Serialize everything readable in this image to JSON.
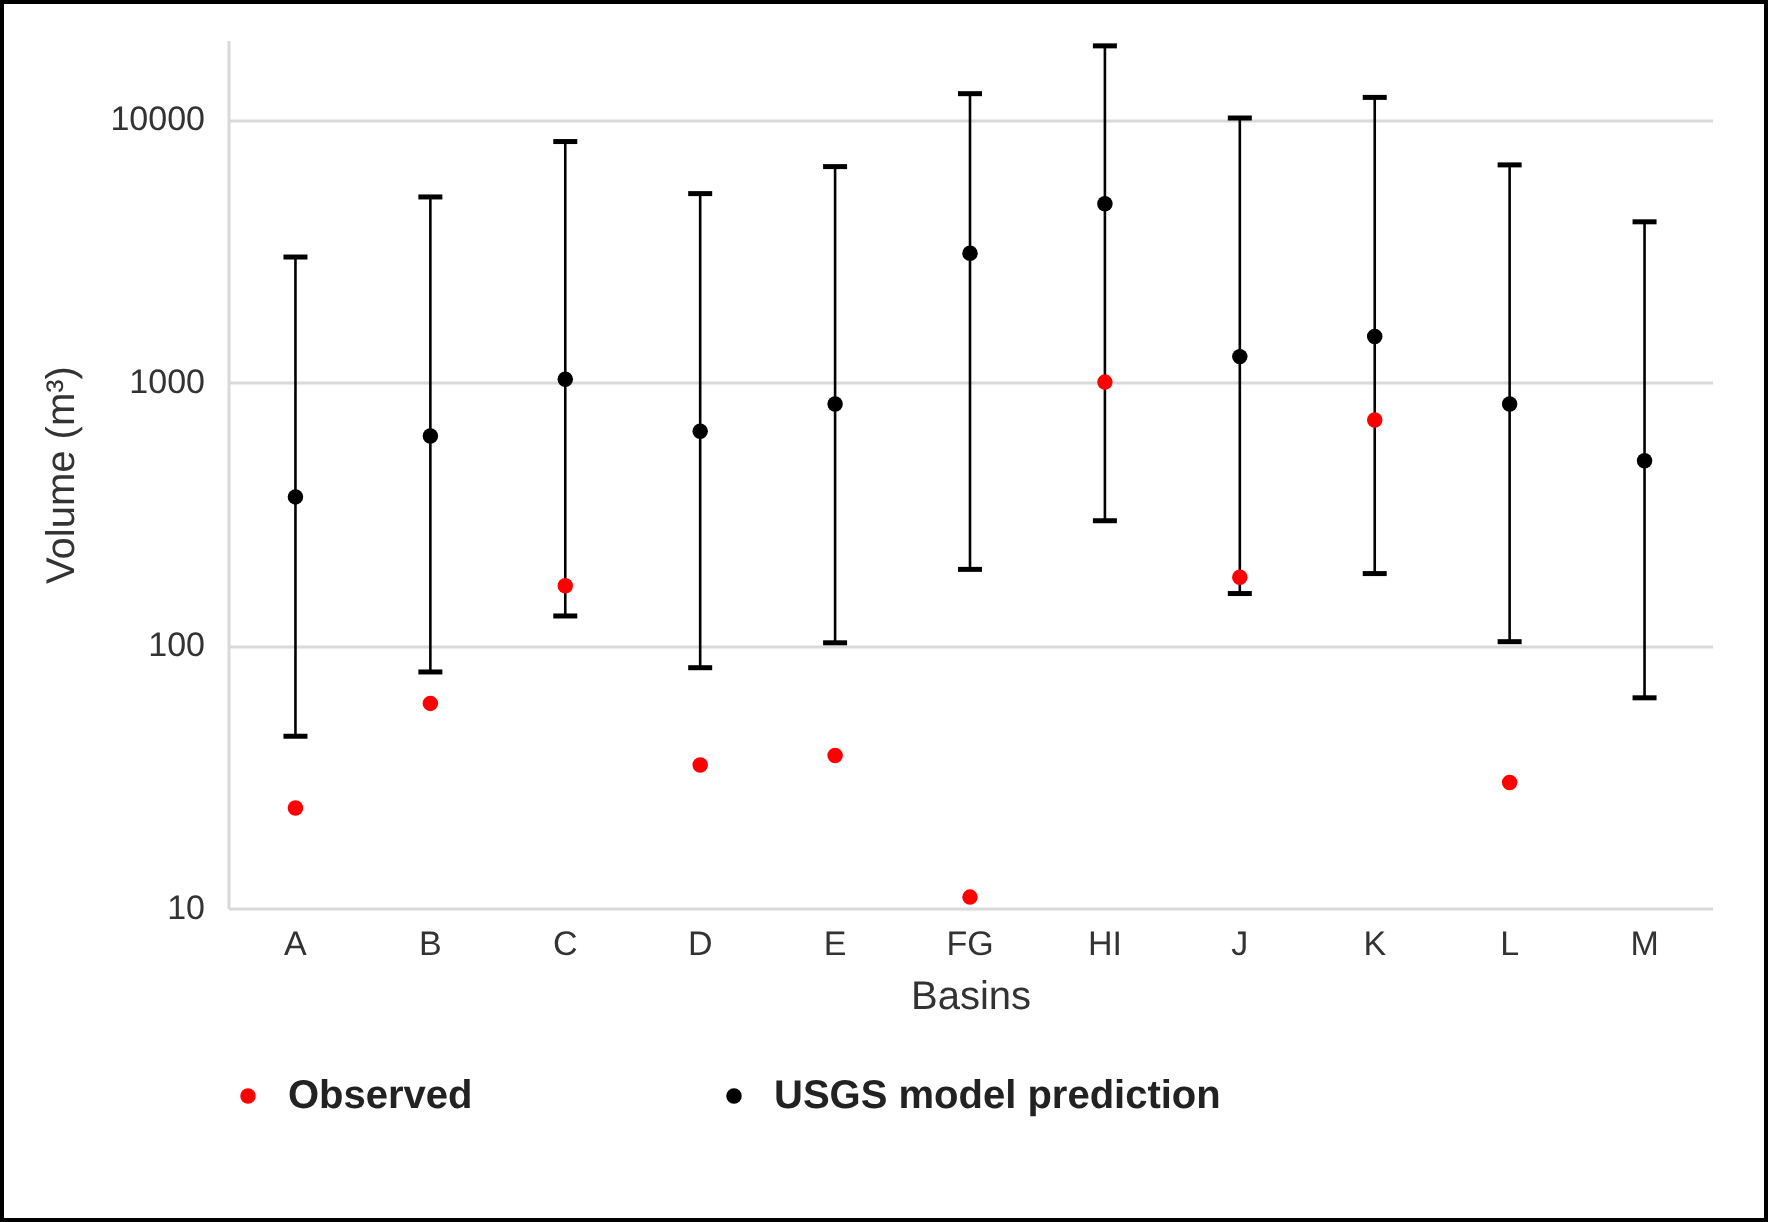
{
  "chart_data": {
    "type": "scatter",
    "xlabel": "Basins",
    "ylabel": "Volume (m³)",
    "categories": [
      "A",
      "B",
      "C",
      "D",
      "E",
      "FG",
      "HI",
      "J",
      "K",
      "L",
      "M"
    ],
    "series": [
      {
        "name": "Observed",
        "color": "#ff0000",
        "values": [
          24,
          60,
          168,
          35,
          38,
          11,
          1000,
          181,
          718,
          30,
          null
        ]
      },
      {
        "name": "USGS model prediction",
        "color": "#000000",
        "values": [
          366,
          624,
          1025,
          650,
          826,
          3090,
          4770,
          1250,
          1490,
          826,
          502
        ],
        "errors": [
          [
            45,
            2990
          ],
          [
            79,
            5060
          ],
          [
            129,
            8220
          ],
          [
            82,
            5210
          ],
          [
            102,
            6600
          ],
          [
            194,
            12500
          ],
          [
            297,
            19000
          ],
          [
            157,
            10100
          ],
          [
            187,
            12100
          ],
          [
            103,
            6700
          ],
          [
            63,
            4070
          ]
        ]
      }
    ],
    "log": true,
    "ylim": [
      10,
      20000
    ],
    "yticks": [
      10,
      100,
      {
        "value": 1000,
        "label": "1000"
      },
      {
        "value": 10000,
        "label": "10000"
      }
    ],
    "grid": "y",
    "legend": "bottom",
    "marker": "circle"
  }
}
